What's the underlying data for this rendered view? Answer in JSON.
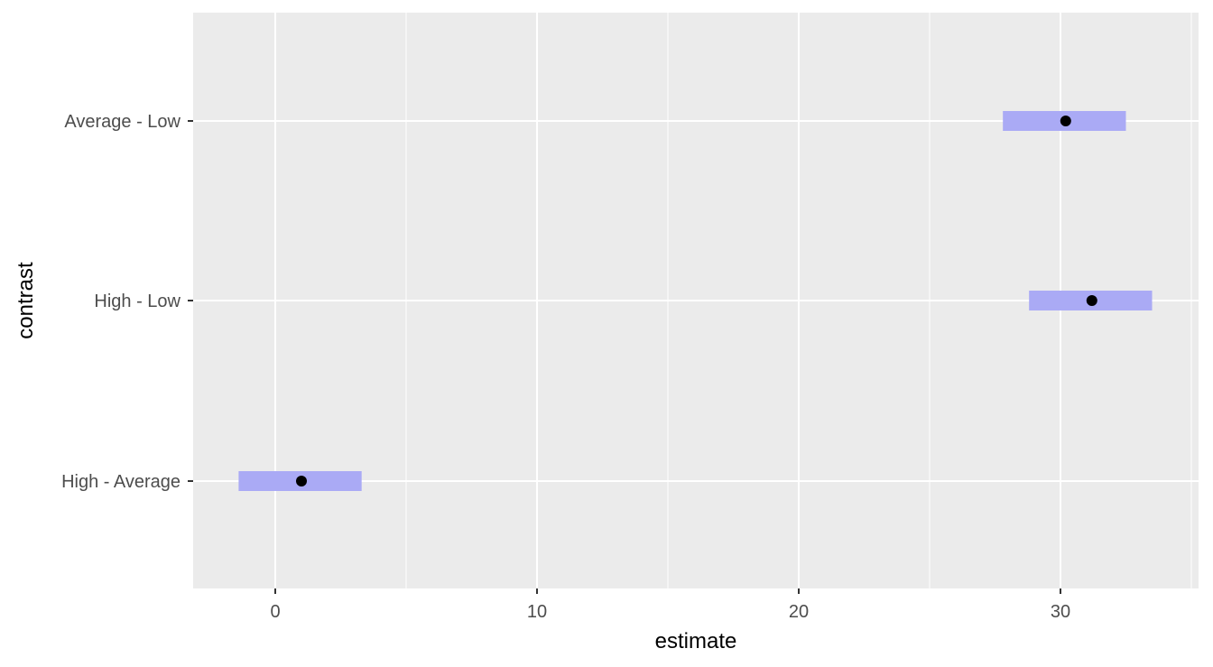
{
  "chart_data": {
    "type": "point-interval",
    "xlabel": "estimate",
    "ylabel": "contrast",
    "xlim": [
      -3.2,
      35.2
    ],
    "x_ticks": [
      0,
      10,
      20,
      30
    ],
    "x_tick_labels": [
      "0",
      "10",
      "20",
      "30"
    ],
    "x_minor_ticks": [
      -5,
      5,
      15,
      25,
      35
    ],
    "categories": [
      "High - Average",
      "High - Low",
      "Average - Low"
    ],
    "estimates": [
      1.0,
      31.2,
      30.2
    ],
    "conf_low": [
      -1.4,
      28.8,
      27.8
    ],
    "conf_high": [
      3.3,
      33.5,
      32.5
    ],
    "grid": true,
    "colors": {
      "panel": "#ebebeb",
      "grid": "#ffffff",
      "interval": "#aaaaf5",
      "point": "#000000",
      "tick": "#333333"
    }
  }
}
